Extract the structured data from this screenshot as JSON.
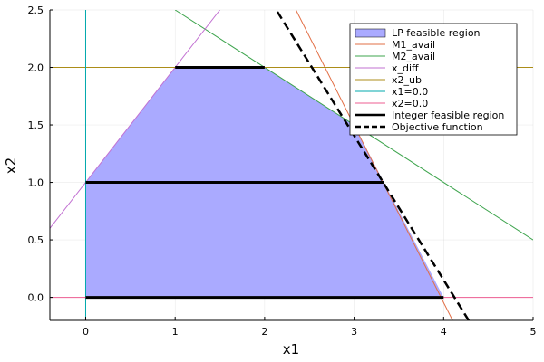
{
  "chart_data": {
    "type": "line",
    "title": "",
    "xlabel": "x1",
    "ylabel": "x2",
    "xlim": [
      -0.4,
      5
    ],
    "ylim": [
      -0.2,
      2.5
    ],
    "grid": true,
    "legend_position": "top-right",
    "x_ticks": [
      0,
      1,
      2,
      3,
      4,
      5
    ],
    "x_tick_labels": [
      "0",
      "1",
      "2",
      "3",
      "4",
      "5"
    ],
    "y_ticks": [
      0.0,
      0.5,
      1.0,
      1.5,
      2.0,
      2.5
    ],
    "y_tick_labels": [
      "0.0",
      "0.5",
      "1.0",
      "1.5",
      "2.0",
      "2.5"
    ],
    "series": [
      {
        "name": "LP feasible region",
        "kind": "area",
        "color": "#aaaaff",
        "points": [
          [
            0,
            0
          ],
          [
            4,
            0
          ],
          [
            3.0,
            1.5
          ],
          [
            2,
            2
          ],
          [
            1,
            2
          ],
          [
            0,
            1
          ]
        ]
      },
      {
        "name": "M1_avail",
        "kind": "line",
        "color": "#e26f46",
        "points": [
          [
            4.1,
            -0.2
          ],
          [
            2.35,
            2.5
          ]
        ]
      },
      {
        "name": "M2_avail",
        "kind": "line",
        "color": "#3da44d",
        "points": [
          [
            1,
            2.5
          ],
          [
            5,
            0.5
          ]
        ]
      },
      {
        "name": "x_diff",
        "kind": "line",
        "color": "#c271d2",
        "points": [
          [
            -0.4,
            0.6
          ],
          [
            1.5,
            2.5
          ]
        ]
      },
      {
        "name": "x2_ub",
        "kind": "line",
        "color": "#ac8d18",
        "points": [
          [
            -0.4,
            2
          ],
          [
            5,
            2
          ]
        ]
      },
      {
        "name": "x1=0.0",
        "kind": "line",
        "color": "#00a9ad",
        "points": [
          [
            0,
            -0.2
          ],
          [
            0,
            2.5
          ]
        ]
      },
      {
        "name": "x2=0.0",
        "kind": "line",
        "color": "#ed5d92",
        "points": [
          [
            -0.4,
            0
          ],
          [
            5,
            0
          ]
        ]
      },
      {
        "name": "Integer feasible region",
        "kind": "segments",
        "color": "#000000",
        "segments": [
          [
            [
              0,
              0
            ],
            [
              4,
              0
            ]
          ],
          [
            [
              0,
              1
            ],
            [
              3.33,
              1
            ]
          ],
          [
            [
              1,
              2
            ],
            [
              2,
              2
            ]
          ]
        ]
      },
      {
        "name": "Objective function",
        "kind": "dashed",
        "color": "#000000",
        "points": [
          [
            4.28,
            -0.2
          ],
          [
            2.13,
            2.5
          ]
        ]
      }
    ]
  }
}
